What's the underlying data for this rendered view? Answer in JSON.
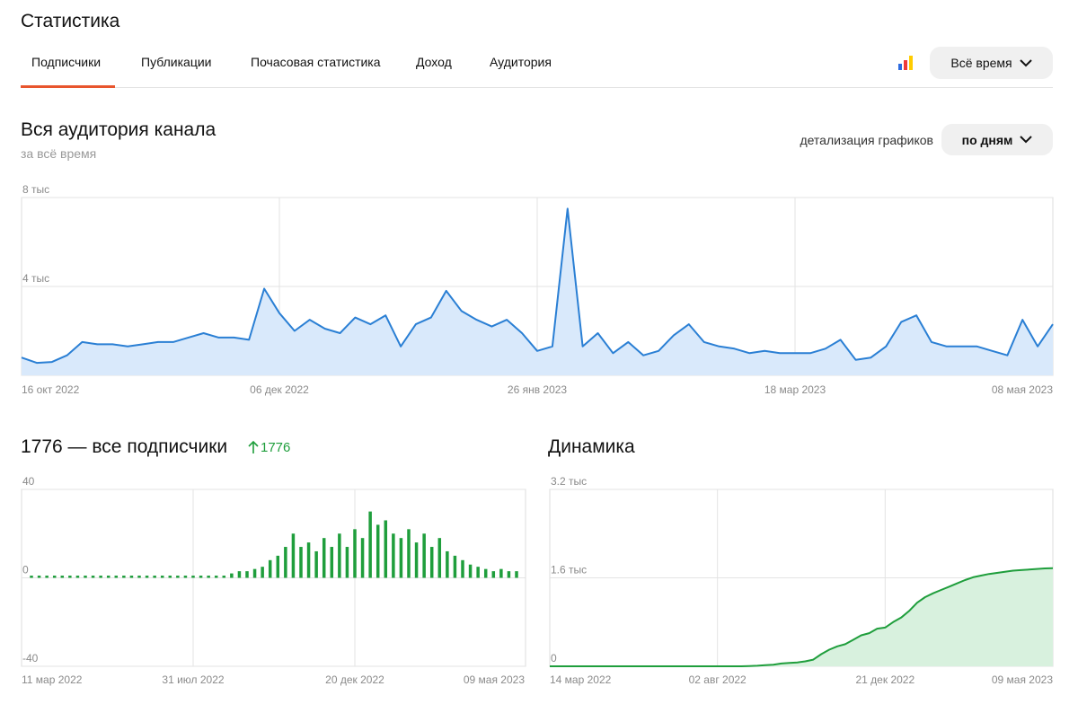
{
  "header": {
    "title": "Статистика",
    "tabs": [
      "Подписчики",
      "Публикации",
      "Почасовая статистика",
      "Доход",
      "Аудитория"
    ],
    "period": "Всё время"
  },
  "section": {
    "title": "Вся аудитория канала",
    "subtitle": "за всё время",
    "detail_label": "детализация графиков",
    "detail_value": "по дням"
  },
  "chart_data": [
    {
      "type": "area",
      "color": "#2a7fd4",
      "fill_color": "#d9e9fb",
      "grid": true,
      "categories": [
        "16 окт 2022",
        null,
        null,
        null,
        null,
        null,
        null,
        null,
        null,
        null,
        null,
        null,
        null,
        null,
        null,
        null,
        null,
        "06 дек 2022",
        null,
        null,
        null,
        null,
        null,
        null,
        null,
        null,
        null,
        null,
        null,
        null,
        null,
        null,
        null,
        null,
        "26 янв 2023",
        null,
        null,
        null,
        null,
        null,
        null,
        null,
        null,
        null,
        null,
        null,
        null,
        null,
        null,
        null,
        null,
        "18 мар 2023",
        null,
        null,
        null,
        null,
        null,
        null,
        null,
        null,
        null,
        null,
        null,
        null,
        null,
        null,
        null,
        null,
        "08 мая 2023"
      ],
      "values": [
        800,
        560,
        600,
        900,
        1500,
        1400,
        1400,
        1300,
        1400,
        1500,
        1500,
        1700,
        1900,
        1700,
        1700,
        1600,
        3900,
        2800,
        2000,
        2500,
        2100,
        1900,
        2600,
        2300,
        2700,
        1300,
        2300,
        2600,
        3800,
        2900,
        2500,
        2200,
        2500,
        1900,
        1100,
        1300,
        7500,
        1300,
        1900,
        1000,
        1500,
        900,
        1100,
        1800,
        2300,
        1500,
        1300,
        1200,
        1000,
        1100,
        1000,
        1000,
        1000,
        1200,
        1600,
        700,
        800,
        1300,
        2400,
        2700,
        1500,
        1300,
        1300,
        1300,
        1100,
        900,
        2500,
        1300,
        2300
      ],
      "ylim": [
        0,
        8000
      ],
      "yticks": [
        {
          "value": 8000,
          "label": "8 тыс"
        },
        {
          "value": 4000,
          "label": "4 тыс"
        },
        0
      ]
    },
    {
      "type": "bar",
      "title": "1776 — все подписчики",
      "annotation": "1776",
      "color": "#1f9e3c",
      "grid": true,
      "categories": [
        "11 мар 2022",
        null,
        null,
        null,
        null,
        null,
        null,
        null,
        null,
        null,
        null,
        null,
        null,
        null,
        null,
        null,
        null,
        null,
        null,
        null,
        null,
        "31 июл 2022",
        null,
        null,
        null,
        null,
        null,
        null,
        null,
        null,
        null,
        null,
        null,
        null,
        null,
        null,
        null,
        null,
        null,
        null,
        null,
        null,
        "20 дек 2022",
        null,
        null,
        null,
        null,
        null,
        null,
        null,
        null,
        null,
        null,
        null,
        null,
        null,
        null,
        null,
        null,
        null,
        null,
        null,
        null,
        "09 мая 2023"
      ],
      "values": [
        1,
        1,
        1,
        1,
        1,
        1,
        1,
        1,
        1,
        1,
        1,
        1,
        1,
        1,
        1,
        1,
        1,
        1,
        1,
        1,
        1,
        1,
        1,
        1,
        1,
        1,
        2,
        3,
        3,
        4,
        5,
        8,
        10,
        14,
        20,
        14,
        16,
        12,
        18,
        14,
        20,
        14,
        22,
        18,
        30,
        24,
        26,
        20,
        18,
        22,
        16,
        20,
        14,
        18,
        12,
        10,
        8,
        6,
        5,
        4,
        3,
        4,
        3,
        3
      ],
      "ylim": [
        -40,
        40
      ],
      "yticks": [
        40,
        0,
        -40
      ]
    },
    {
      "type": "area",
      "title": "Динамика",
      "color": "#1f9e3c",
      "fill_color": "#d8f1de",
      "grid": true,
      "categories": [
        "14 мар 2022",
        null,
        null,
        null,
        null,
        null,
        null,
        null,
        null,
        null,
        null,
        null,
        null,
        null,
        null,
        null,
        null,
        null,
        null,
        null,
        null,
        "02 авг 2022",
        null,
        null,
        null,
        null,
        null,
        null,
        null,
        null,
        null,
        null,
        null,
        null,
        null,
        null,
        null,
        null,
        null,
        null,
        null,
        null,
        "21 дек 2022",
        null,
        null,
        null,
        null,
        null,
        null,
        null,
        null,
        null,
        null,
        null,
        null,
        null,
        null,
        null,
        null,
        null,
        null,
        null,
        null,
        "09 мая 2023"
      ],
      "values": [
        0,
        0,
        0,
        0,
        0,
        0,
        0,
        0,
        0,
        0,
        0,
        0,
        0,
        0,
        0,
        0,
        0,
        0,
        0,
        0,
        0,
        0,
        0,
        0,
        0,
        5,
        10,
        20,
        30,
        50,
        60,
        70,
        90,
        120,
        220,
        300,
        360,
        400,
        480,
        560,
        600,
        680,
        700,
        800,
        880,
        1000,
        1150,
        1250,
        1320,
        1380,
        1440,
        1500,
        1560,
        1610,
        1640,
        1670,
        1690,
        1710,
        1730,
        1740,
        1750,
        1760,
        1770,
        1776
      ],
      "ylim": [
        0,
        3200
      ],
      "yticks": [
        {
          "value": 3200,
          "label": "3.2 тыс"
        },
        {
          "value": 1600,
          "label": "1.6 тыс"
        },
        0
      ]
    }
  ]
}
